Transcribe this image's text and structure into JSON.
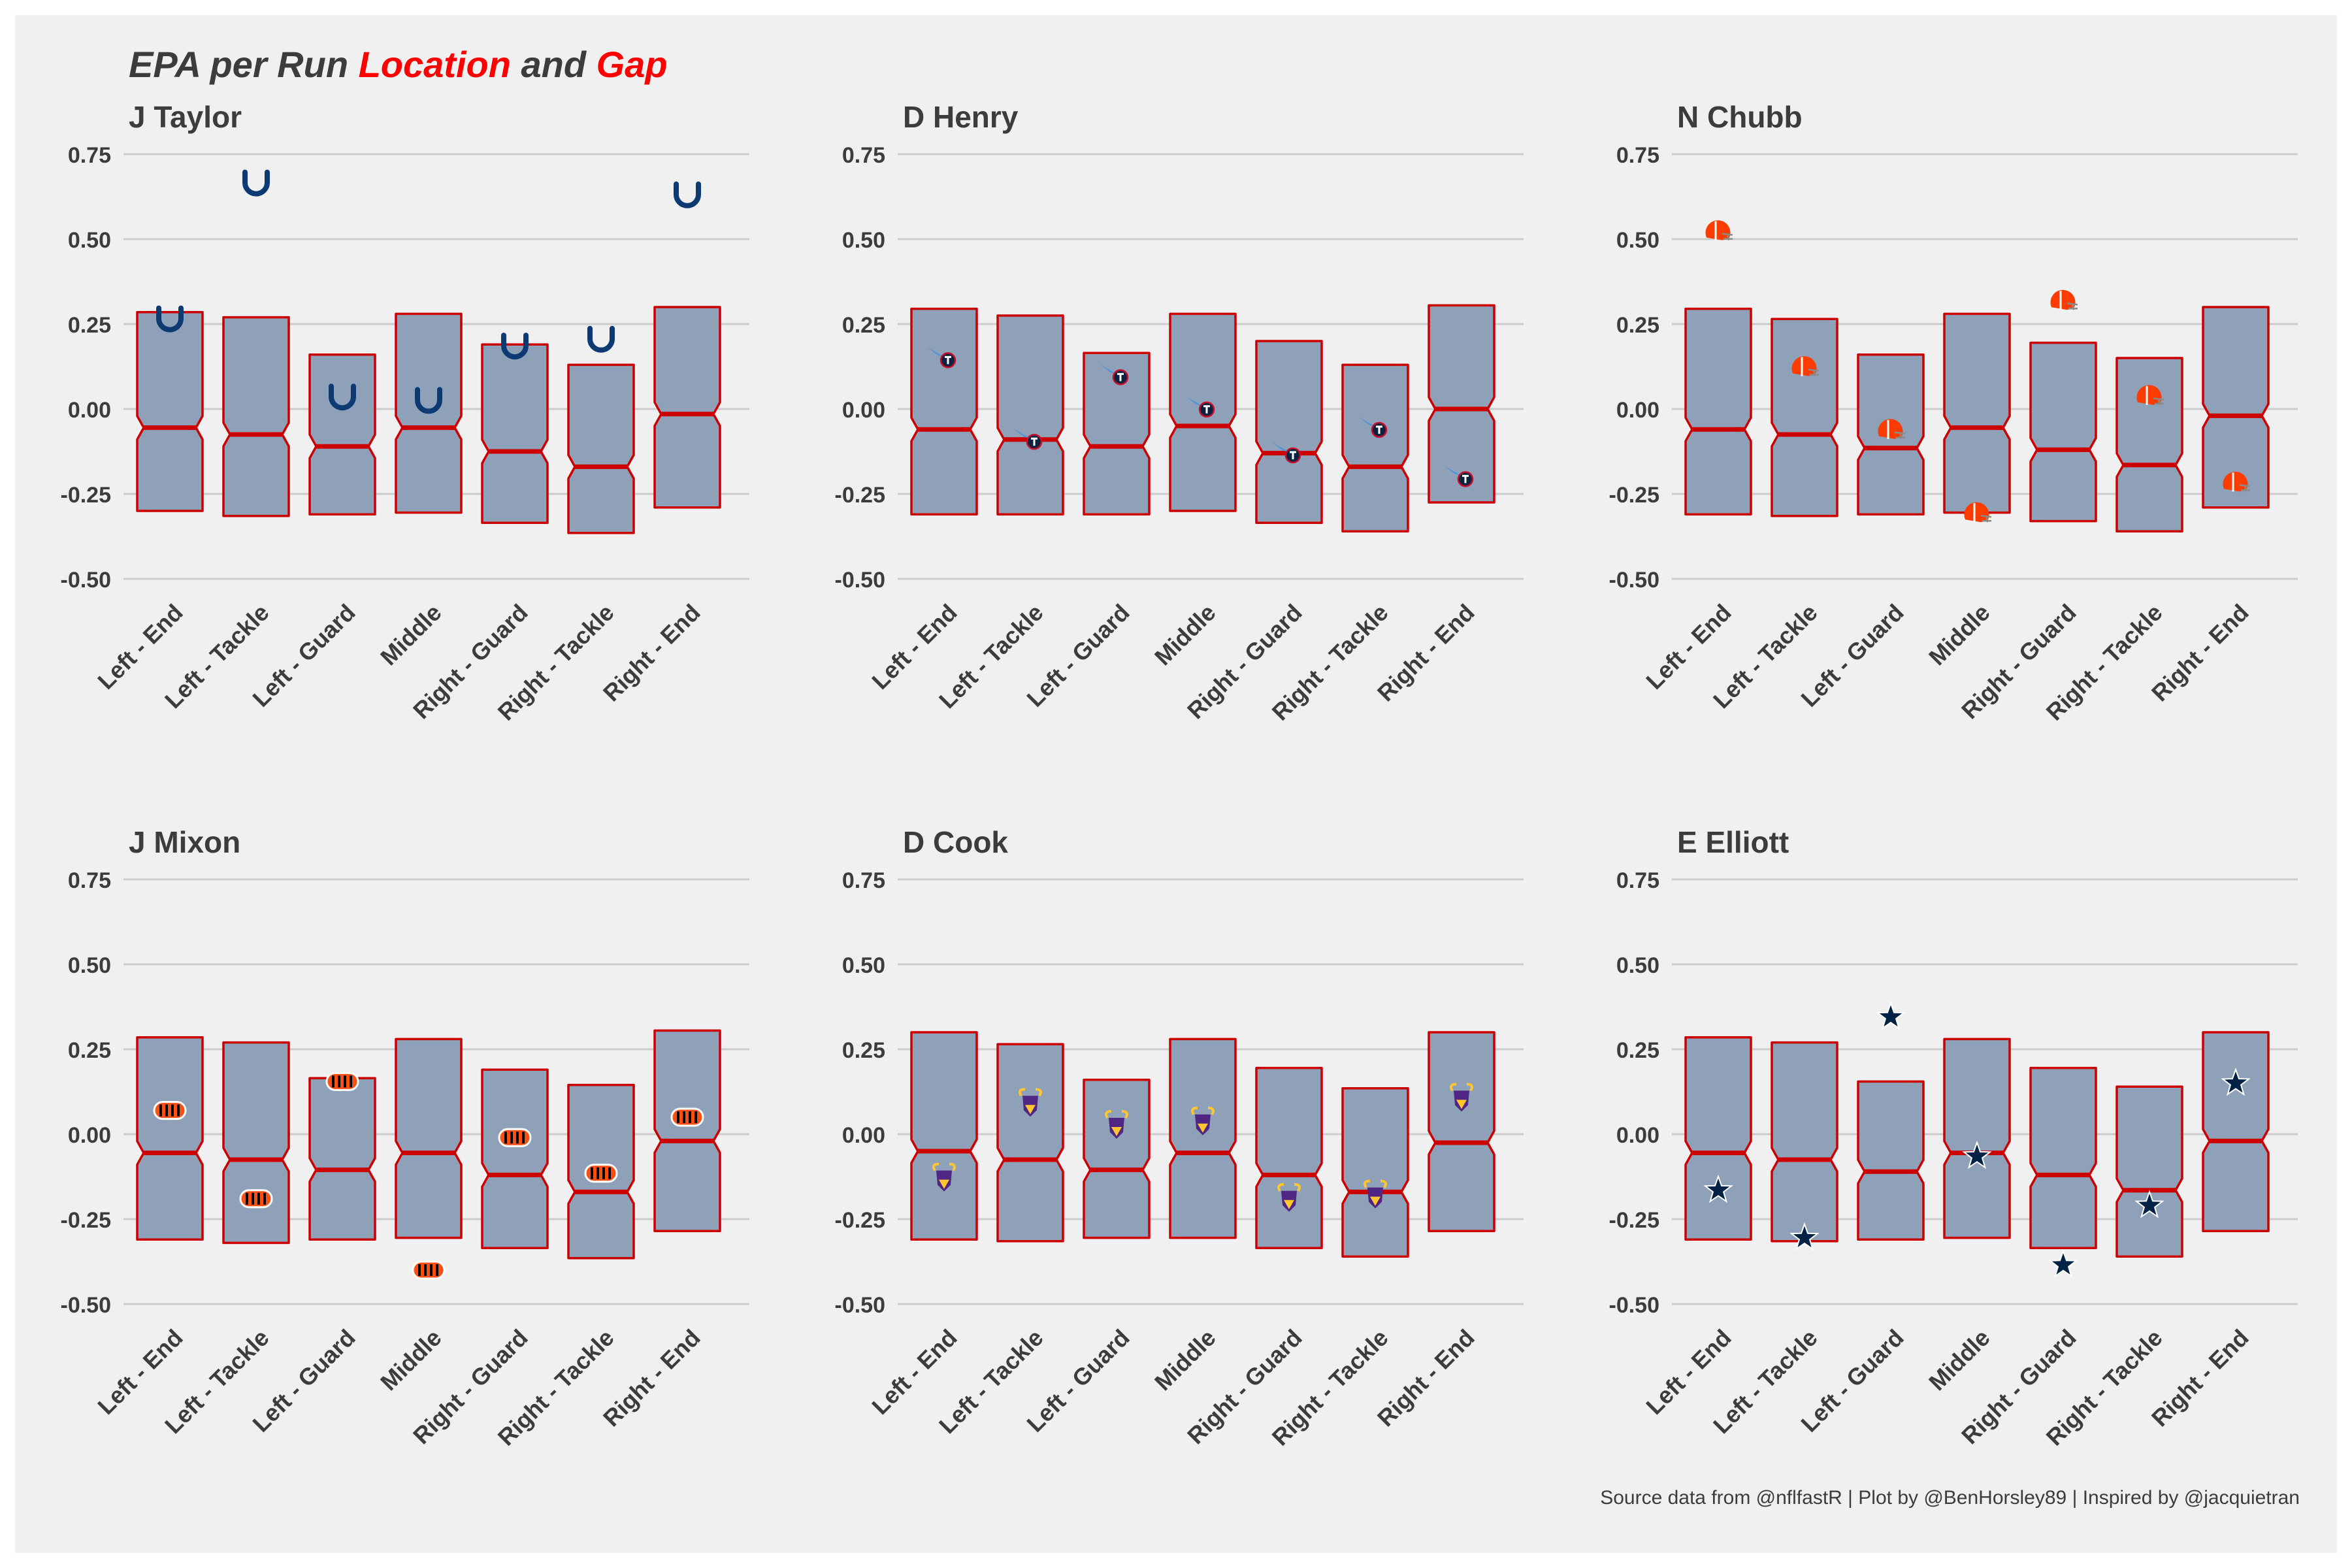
{
  "title": {
    "lead": "EPA per Run",
    "part1": "Location",
    "mid": "and",
    "part2": "Gap"
  },
  "caption": "Source data from @nflfastR | Plot by @BenHorsley89 | Inspired by @jacquietran",
  "colors": {
    "box_fill": "#8ea1b8",
    "box_stroke": "#cc0000",
    "grid": "#cccccc",
    "text": "#3c3c3c",
    "accent": "#ff0000"
  },
  "chart_data": [
    {
      "type": "boxplot",
      "title": "J Taylor",
      "team": "Indianapolis Colts",
      "marker_icon": "horseshoe-icon",
      "categories": [
        "Left - End",
        "Left - Tackle",
        "Left - Guard",
        "Middle",
        "Right - Guard",
        "Right - Tackle",
        "Right - End"
      ],
      "ylim": [
        -0.55,
        0.78
      ],
      "yticks": [
        "0.75",
        "0.50",
        "0.25",
        "0.00",
        "-0.25",
        "-0.50"
      ],
      "boxes": [
        {
          "q1": -0.3,
          "median": -0.055,
          "q3": 0.285
        },
        {
          "q1": -0.315,
          "median": -0.075,
          "q3": 0.27
        },
        {
          "q1": -0.31,
          "median": -0.11,
          "q3": 0.16
        },
        {
          "q1": -0.305,
          "median": -0.055,
          "q3": 0.28
        },
        {
          "q1": -0.335,
          "median": -0.125,
          "q3": 0.19
        },
        {
          "q1": -0.365,
          "median": -0.17,
          "q3": 0.13
        },
        {
          "q1": -0.29,
          "median": -0.015,
          "q3": 0.3
        }
      ],
      "values": [
        0.27,
        0.67,
        0.04,
        0.03,
        0.19,
        0.21,
        0.635
      ]
    },
    {
      "type": "boxplot",
      "title": "D Henry",
      "team": "Tennessee Titans",
      "marker_icon": "titans-logo-icon",
      "categories": [
        "Left - End",
        "Left - Tackle",
        "Left - Guard",
        "Middle",
        "Right - Guard",
        "Right - Tackle",
        "Right - End"
      ],
      "ylim": [
        -0.55,
        0.78
      ],
      "yticks": [
        "0.75",
        "0.50",
        "0.25",
        "0.00",
        "-0.25",
        "-0.50"
      ],
      "boxes": [
        {
          "q1": -0.31,
          "median": -0.06,
          "q3": 0.295
        },
        {
          "q1": -0.31,
          "median": -0.09,
          "q3": 0.275
        },
        {
          "q1": -0.31,
          "median": -0.11,
          "q3": 0.165
        },
        {
          "q1": -0.3,
          "median": -0.05,
          "q3": 0.28
        },
        {
          "q1": -0.335,
          "median": -0.13,
          "q3": 0.2
        },
        {
          "q1": -0.36,
          "median": -0.17,
          "q3": 0.13
        },
        {
          "q1": -0.275,
          "median": 0.0,
          "q3": 0.305
        }
      ],
      "values": [
        0.155,
        -0.085,
        0.105,
        0.01,
        -0.125,
        -0.05,
        -0.195
      ]
    },
    {
      "type": "boxplot",
      "title": "N Chubb",
      "team": "Cleveland Browns",
      "marker_icon": "browns-helmet-icon",
      "categories": [
        "Left - End",
        "Left - Tackle",
        "Left - Guard",
        "Middle",
        "Right - Guard",
        "Right - Tackle",
        "Right - End"
      ],
      "ylim": [
        -0.55,
        0.78
      ],
      "yticks": [
        "0.75",
        "0.50",
        "0.25",
        "0.00",
        "-0.25",
        "-0.50"
      ],
      "boxes": [
        {
          "q1": -0.31,
          "median": -0.06,
          "q3": 0.295
        },
        {
          "q1": -0.315,
          "median": -0.075,
          "q3": 0.265
        },
        {
          "q1": -0.31,
          "median": -0.115,
          "q3": 0.16
        },
        {
          "q1": -0.305,
          "median": -0.055,
          "q3": 0.28
        },
        {
          "q1": -0.33,
          "median": -0.12,
          "q3": 0.195
        },
        {
          "q1": -0.36,
          "median": -0.165,
          "q3": 0.15
        },
        {
          "q1": -0.29,
          "median": -0.02,
          "q3": 0.3
        }
      ],
      "values": [
        0.52,
        0.12,
        -0.065,
        -0.31,
        0.315,
        0.035,
        -0.22
      ]
    },
    {
      "type": "boxplot",
      "title": "J Mixon",
      "team": "Cincinnati Bengals",
      "marker_icon": "bengals-logo-icon",
      "categories": [
        "Left - End",
        "Left - Tackle",
        "Left - Guard",
        "Middle",
        "Right - Guard",
        "Right - Tackle",
        "Right - End"
      ],
      "ylim": [
        -0.55,
        0.78
      ],
      "yticks": [
        "0.75",
        "0.50",
        "0.25",
        "0.00",
        "-0.25",
        "-0.50"
      ],
      "boxes": [
        {
          "q1": -0.31,
          "median": -0.055,
          "q3": 0.285
        },
        {
          "q1": -0.32,
          "median": -0.075,
          "q3": 0.27
        },
        {
          "q1": -0.31,
          "median": -0.105,
          "q3": 0.165
        },
        {
          "q1": -0.305,
          "median": -0.055,
          "q3": 0.28
        },
        {
          "q1": -0.335,
          "median": -0.12,
          "q3": 0.19
        },
        {
          "q1": -0.365,
          "median": -0.17,
          "q3": 0.145
        },
        {
          "q1": -0.285,
          "median": -0.02,
          "q3": 0.305
        }
      ],
      "values": [
        0.07,
        -0.19,
        0.155,
        -0.4,
        -0.01,
        -0.115,
        0.05
      ]
    },
    {
      "type": "boxplot",
      "title": "D Cook",
      "team": "Minnesota Vikings",
      "marker_icon": "vikings-logo-icon",
      "categories": [
        "Left - End",
        "Left - Tackle",
        "Left - Guard",
        "Middle",
        "Right - Guard",
        "Right - Tackle",
        "Right - End"
      ],
      "ylim": [
        -0.55,
        0.78
      ],
      "yticks": [
        "0.75",
        "0.50",
        "0.25",
        "0.00",
        "-0.25",
        "-0.50"
      ],
      "boxes": [
        {
          "q1": -0.31,
          "median": -0.05,
          "q3": 0.3
        },
        {
          "q1": -0.315,
          "median": -0.075,
          "q3": 0.265
        },
        {
          "q1": -0.305,
          "median": -0.105,
          "q3": 0.16
        },
        {
          "q1": -0.305,
          "median": -0.055,
          "q3": 0.28
        },
        {
          "q1": -0.335,
          "median": -0.12,
          "q3": 0.195
        },
        {
          "q1": -0.36,
          "median": -0.17,
          "q3": 0.135
        },
        {
          "q1": -0.285,
          "median": -0.025,
          "q3": 0.3
        }
      ],
      "values": [
        -0.13,
        0.09,
        0.025,
        0.035,
        -0.19,
        -0.18,
        0.105
      ]
    },
    {
      "type": "boxplot",
      "title": "E Elliott",
      "team": "Dallas Cowboys",
      "marker_icon": "star-icon",
      "categories": [
        "Left - End",
        "Left - Tackle",
        "Left - Guard",
        "Middle",
        "Right - Guard",
        "Right - Tackle",
        "Right - End"
      ],
      "ylim": [
        -0.55,
        0.78
      ],
      "yticks": [
        "0.75",
        "0.50",
        "0.25",
        "0.00",
        "-0.25",
        "-0.50"
      ],
      "boxes": [
        {
          "q1": -0.31,
          "median": -0.055,
          "q3": 0.285
        },
        {
          "q1": -0.315,
          "median": -0.075,
          "q3": 0.27
        },
        {
          "q1": -0.31,
          "median": -0.11,
          "q3": 0.155
        },
        {
          "q1": -0.305,
          "median": -0.055,
          "q3": 0.28
        },
        {
          "q1": -0.335,
          "median": -0.12,
          "q3": 0.195
        },
        {
          "q1": -0.36,
          "median": -0.165,
          "q3": 0.14
        },
        {
          "q1": -0.285,
          "median": -0.02,
          "q3": 0.3
        }
      ],
      "values": [
        -0.165,
        -0.305,
        0.345,
        -0.065,
        -0.385,
        -0.21,
        0.15
      ]
    }
  ]
}
